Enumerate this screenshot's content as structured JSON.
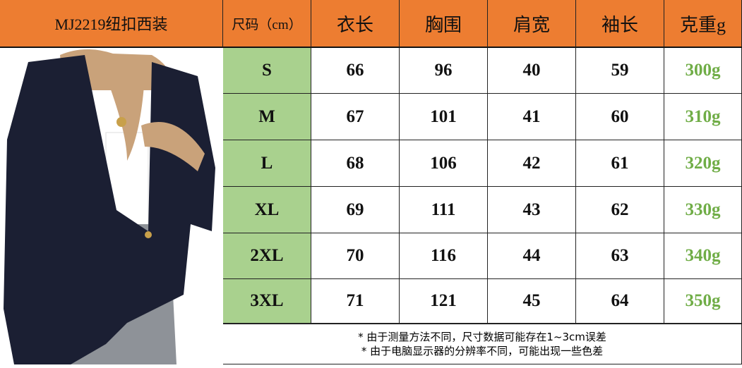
{
  "header": {
    "product": "MJ2219纽扣西装",
    "columns": [
      "尺码（cm）",
      "衣长",
      "胸围",
      "肩宽",
      "袖长",
      "克重g"
    ]
  },
  "rows": [
    [
      "S",
      "66",
      "96",
      "40",
      "59",
      "300g"
    ],
    [
      "M",
      "67",
      "101",
      "41",
      "60",
      "310g"
    ],
    [
      "L",
      "68",
      "106",
      "42",
      "61",
      "320g"
    ],
    [
      "XL",
      "69",
      "111",
      "43",
      "62",
      "330g"
    ],
    [
      "2XL",
      "70",
      "116",
      "44",
      "63",
      "340g"
    ],
    [
      "3XL",
      "71",
      "121",
      "45",
      "64",
      "350g"
    ]
  ],
  "notes": [
    "* 由于测量方法不同，尺寸数据可能存在1~3cm误差",
    "* 由于电脑显示器的分辨率不同，可能出现一些色差"
  ],
  "colors": {
    "header": "#ED7D31",
    "size_column": "#A9D18E",
    "weight_text": "#70AD47",
    "blazer": "#1b1f33"
  }
}
